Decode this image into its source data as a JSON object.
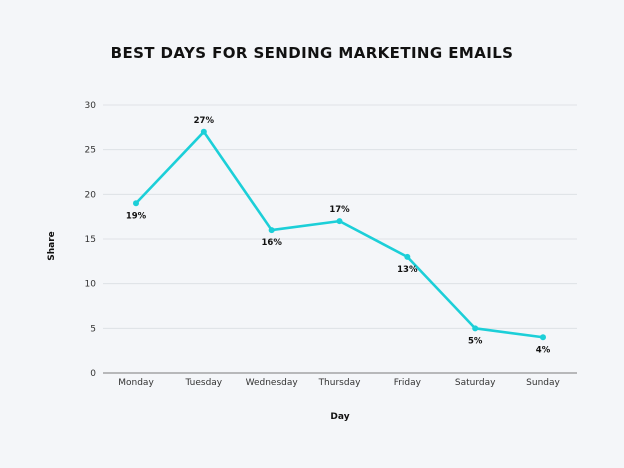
{
  "chart_data": {
    "type": "line",
    "title": "BEST DAYS FOR SENDING MARKETING EMAILS",
    "xlabel": "Day",
    "ylabel": "Share",
    "categories": [
      "Monday",
      "Tuesday",
      "Wednesday",
      "Thursday",
      "Friday",
      "Saturday",
      "Sunday"
    ],
    "series": [
      {
        "values": [
          19,
          27,
          16,
          17,
          13,
          5,
          4
        ],
        "data_labels": [
          "19%",
          "27%",
          "16%",
          "17%",
          "13%",
          "5%",
          "4%"
        ],
        "color": "#1ccfd8"
      }
    ],
    "label_placement": [
      "below",
      "above",
      "below",
      "above",
      "below",
      "below",
      "below"
    ],
    "ylim": [
      0,
      30
    ],
    "yticks": [
      0,
      5,
      10,
      15,
      20,
      25,
      30
    ],
    "grid": true,
    "legend": "none"
  }
}
